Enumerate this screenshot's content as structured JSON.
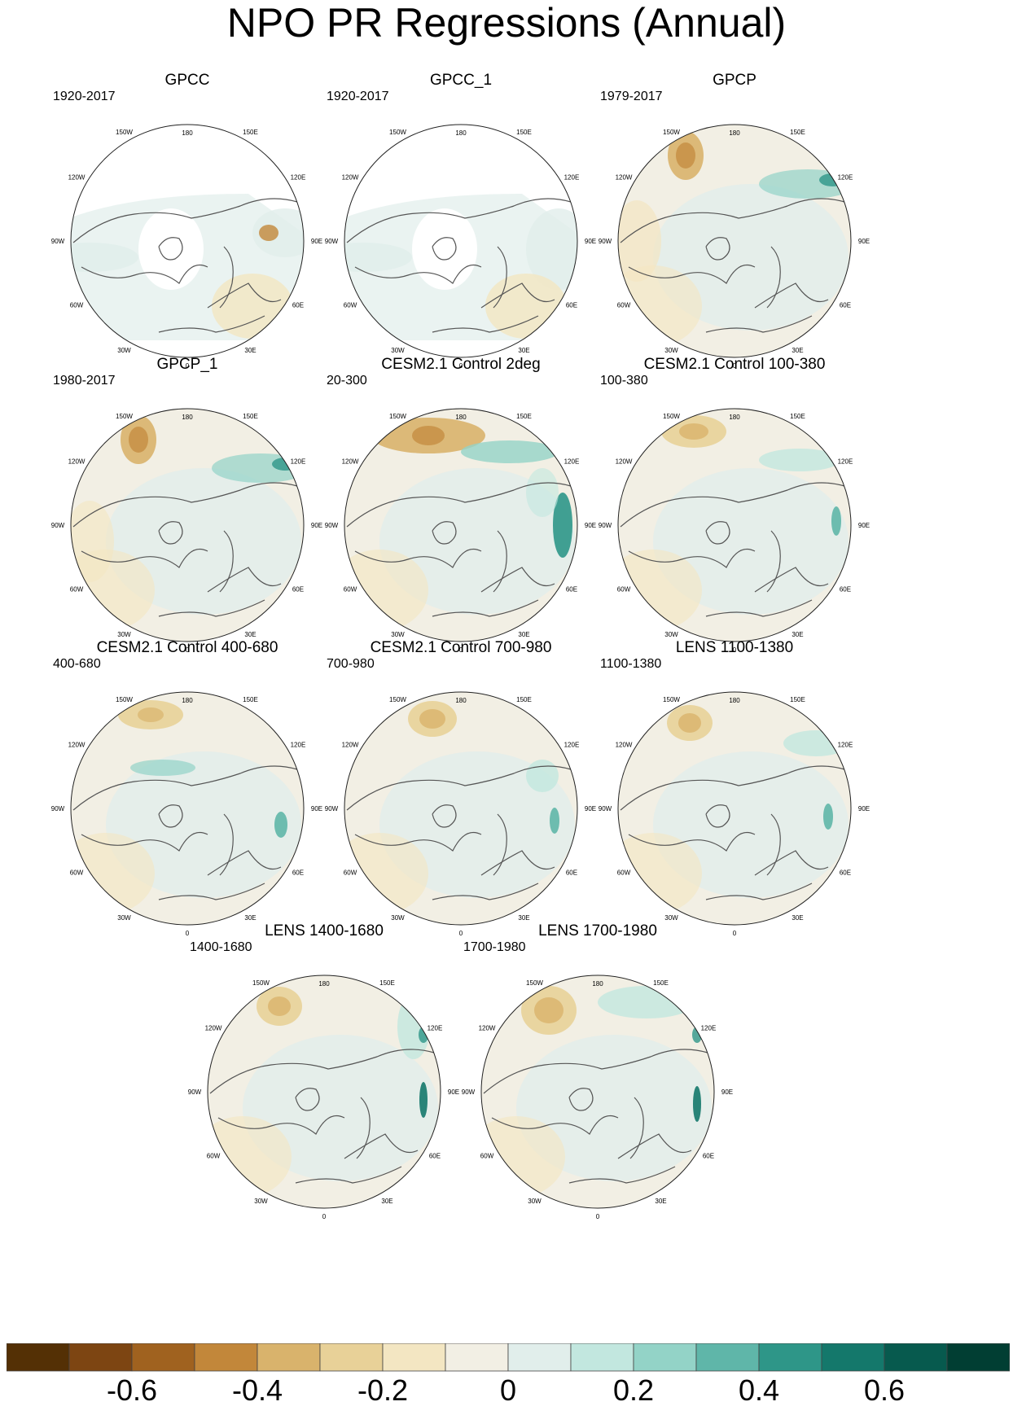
{
  "title": "NPO PR Regressions (Annual)",
  "longitude_labels": [
    "180",
    "150E",
    "120E",
    "90E",
    "60E",
    "30E",
    "0",
    "30W",
    "60W",
    "90W",
    "120W",
    "150W"
  ],
  "panels": [
    {
      "title": "GPCC",
      "years": "1920-2017"
    },
    {
      "title": "GPCC_1",
      "years": "1920-2017"
    },
    {
      "title": "GPCP",
      "years": "1979-2017"
    },
    {
      "title": "GPCP_1",
      "years": "1980-2017"
    },
    {
      "title": "CESM2.1 Control 2deg",
      "years": "20-300"
    },
    {
      "title": "CESM2.1 Control 100-380",
      "years": "100-380"
    },
    {
      "title": "CESM2.1 Control 400-680",
      "years": "400-680"
    },
    {
      "title": "CESM2.1 Control 700-980",
      "years": "700-980"
    },
    {
      "title": "LENS 1100-1380",
      "years": "1100-1380"
    },
    {
      "title": "LENS 1400-1680",
      "years": "1400-1680"
    },
    {
      "title": "LENS 1700-1980",
      "years": "1700-1980"
    }
  ],
  "colorbar": {
    "colors": [
      "#543005",
      "#7d4512",
      "#a0621f",
      "#c2873a",
      "#d9b36c",
      "#e8d198",
      "#f3e6c2",
      "#f2efe4",
      "#e1eeeb",
      "#c2e7df",
      "#93d3c7",
      "#5fb6a9",
      "#2e9688",
      "#14786b",
      "#075a4e",
      "#013e33"
    ],
    "tick_labels": [
      "-0.6",
      "-0.4",
      "-0.2",
      "0",
      "0.2",
      "0.4",
      "0.6"
    ]
  }
}
